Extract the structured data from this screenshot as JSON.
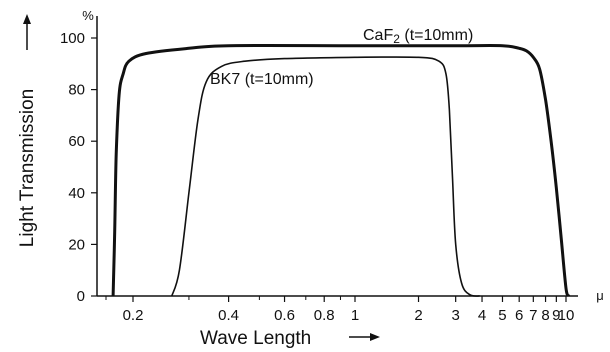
{
  "chart_data": {
    "type": "line",
    "title": "",
    "xlabel": "Wave Length",
    "ylabel": "Light Transmission",
    "x_unit": "μ",
    "y_unit": "%",
    "x_scale": "log",
    "ylim": [
      0,
      100
    ],
    "y_ticks": [
      "0",
      "20",
      "40",
      "60",
      "80",
      "100"
    ],
    "x_ticks": [
      {
        "value": 0.2,
        "label": "0.2"
      },
      {
        "value": 0.4,
        "label": "0.4"
      },
      {
        "value": 0.6,
        "label": "0.6"
      },
      {
        "value": 0.8,
        "label": "0.8"
      },
      {
        "value": 1,
        "label": "1"
      },
      {
        "value": 2,
        "label": "2"
      },
      {
        "value": 3,
        "label": "3"
      },
      {
        "value": 4,
        "label": "4"
      },
      {
        "value": 5,
        "label": "5"
      },
      {
        "value": 6,
        "label": "6"
      },
      {
        "value": 7,
        "label": "7"
      },
      {
        "value": 8,
        "label": "8"
      },
      {
        "value": 9,
        "label": "9"
      },
      {
        "value": 10,
        "label": "10"
      }
    ],
    "grid": false,
    "legend": "inline-labels",
    "series": [
      {
        "name": "CaF₂ (t=10mm)",
        "label_main": "CaF",
        "label_sub": "2",
        "label_rest": " (t=10mm)",
        "stroke": "#111111",
        "width": "heavy",
        "points": [
          [
            0.12,
            0
          ],
          [
            0.125,
            25
          ],
          [
            0.13,
            55
          ],
          [
            0.14,
            78
          ],
          [
            0.155,
            86
          ],
          [
            0.18,
            91
          ],
          [
            0.22,
            94
          ],
          [
            0.3,
            96
          ],
          [
            0.4,
            97
          ],
          [
            1,
            97
          ],
          [
            3,
            97
          ],
          [
            5,
            97
          ],
          [
            6,
            96
          ],
          [
            6.5,
            95
          ],
          [
            7,
            92.5
          ],
          [
            7.5,
            88
          ],
          [
            8,
            76
          ],
          [
            8.5,
            60
          ],
          [
            9,
            42
          ],
          [
            9.5,
            22
          ],
          [
            10,
            3
          ],
          [
            10.3,
            0
          ]
        ]
      },
      {
        "name": "BK7 (t=10mm)",
        "label_main": "BK7",
        "label_sub": "",
        "label_rest": " (t=10mm)",
        "stroke": "#111111",
        "width": "normal",
        "points": [
          [
            0.265,
            0
          ],
          [
            0.28,
            10
          ],
          [
            0.3,
            40
          ],
          [
            0.32,
            68
          ],
          [
            0.34,
            83
          ],
          [
            0.38,
            89
          ],
          [
            0.45,
            91
          ],
          [
            0.6,
            92
          ],
          [
            1,
            92.5
          ],
          [
            2,
            92.5
          ],
          [
            2.5,
            91
          ],
          [
            2.7,
            86
          ],
          [
            2.8,
            72
          ],
          [
            2.9,
            45
          ],
          [
            3.0,
            20
          ],
          [
            3.2,
            5
          ],
          [
            3.5,
            0.5
          ],
          [
            3.9,
            0
          ]
        ]
      }
    ]
  }
}
